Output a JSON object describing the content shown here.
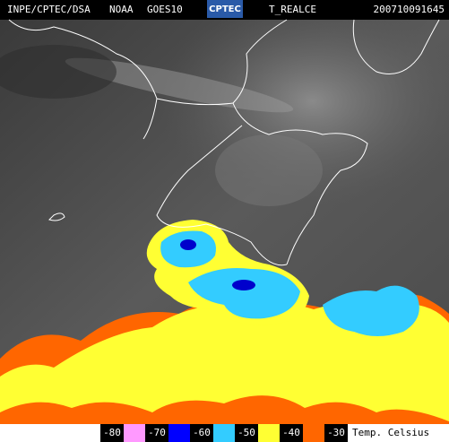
{
  "header": {
    "agency": "INPE/CPTEC/DSA",
    "source": "NOAA",
    "satellite": "GOES10",
    "logo": "CPTEC",
    "product": "T_REALCE",
    "timestamp": "200710091645"
  },
  "legend": {
    "unit": "Temp. Celsius",
    "items": [
      {
        "value": -80,
        "color": "#ff99ff"
      },
      {
        "value": -70,
        "color": "#0000ff"
      },
      {
        "value": -60,
        "color": "#33ccff"
      },
      {
        "value": -50,
        "color": "#ffff33"
      },
      {
        "value": -40,
        "color": "#ff6600"
      },
      {
        "value": -30,
        "color": "#000000"
      }
    ]
  }
}
